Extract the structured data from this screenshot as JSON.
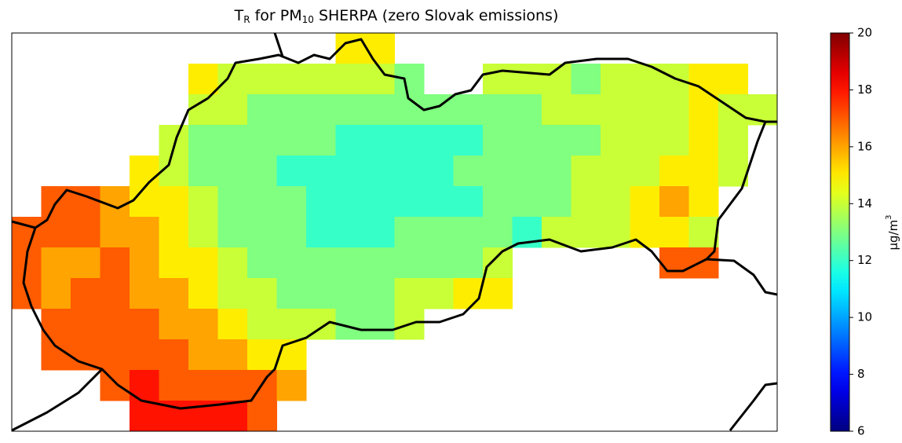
{
  "chart_data": {
    "type": "heatmap",
    "title": {
      "main": "T",
      "main_sub": "R",
      "mid": " for PM",
      "mid_sub": "10",
      "rest": " SHERPA (zero Slovak emissions)"
    },
    "values": [
      [
        null,
        null,
        null,
        null,
        null,
        null,
        null,
        null,
        null,
        null,
        null,
        15,
        15,
        null,
        null,
        null,
        null,
        null,
        null,
        null,
        null,
        null,
        null,
        null,
        null,
        null
      ],
      [
        null,
        null,
        null,
        null,
        null,
        null,
        15,
        14,
        14,
        14,
        14,
        14,
        14,
        13,
        null,
        null,
        14,
        14,
        14,
        13,
        14,
        14,
        14,
        15,
        15,
        null
      ],
      [
        null,
        null,
        null,
        null,
        null,
        null,
        14,
        14,
        13,
        13,
        13,
        13,
        13,
        13,
        13,
        13,
        13,
        13,
        14,
        14,
        14,
        14,
        14,
        15,
        14,
        14
      ],
      [
        null,
        null,
        null,
        null,
        null,
        14,
        13,
        13,
        13,
        13,
        13,
        12,
        12,
        12,
        12,
        12,
        13,
        13,
        13,
        13,
        14,
        14,
        14,
        15,
        14,
        null
      ],
      [
        null,
        null,
        null,
        null,
        15,
        14,
        13,
        13,
        13,
        12,
        12,
        12,
        12,
        12,
        12,
        13,
        13,
        13,
        13,
        14,
        14,
        14,
        15,
        15,
        14,
        null
      ],
      [
        null,
        17,
        17,
        16,
        15,
        15,
        14,
        13,
        13,
        13,
        12,
        12,
        12,
        12,
        12,
        12,
        13,
        13,
        13,
        14,
        14,
        15,
        16,
        15,
        null,
        null
      ],
      [
        17,
        17,
        17,
        16,
        16,
        15,
        14,
        13,
        13,
        13,
        12,
        12,
        12,
        13,
        13,
        13,
        13,
        12,
        14,
        14,
        14,
        15,
        15,
        14,
        null,
        null
      ],
      [
        17,
        16,
        16,
        17,
        16,
        15,
        15,
        14,
        13,
        13,
        13,
        13,
        13,
        13,
        13,
        13,
        14,
        null,
        null,
        null,
        null,
        null,
        17,
        17,
        null,
        null
      ],
      [
        17,
        16,
        17,
        17,
        16,
        16,
        15,
        14,
        14,
        13,
        13,
        13,
        13,
        14,
        14,
        15,
        15,
        null,
        null,
        null,
        null,
        null,
        null,
        null,
        null,
        null
      ],
      [
        null,
        17,
        17,
        17,
        17,
        16,
        16,
        15,
        14,
        14,
        14,
        13,
        13,
        14,
        null,
        null,
        null,
        null,
        null,
        null,
        null,
        null,
        null,
        null,
        null,
        null
      ],
      [
        null,
        17,
        17,
        17,
        17,
        17,
        16,
        16,
        15,
        15,
        null,
        null,
        null,
        null,
        null,
        null,
        null,
        null,
        null,
        null,
        null,
        null,
        null,
        null,
        null,
        null
      ],
      [
        null,
        null,
        null,
        17,
        18,
        17,
        17,
        17,
        17,
        16,
        null,
        null,
        null,
        null,
        null,
        null,
        null,
        null,
        null,
        null,
        null,
        null,
        null,
        null,
        null,
        null
      ],
      [
        null,
        null,
        null,
        null,
        18,
        18,
        18,
        18,
        17,
        null,
        null,
        null,
        null,
        null,
        null,
        null,
        null,
        null,
        null,
        null,
        null,
        null,
        null,
        null,
        null,
        null
      ]
    ],
    "colormap": "jet",
    "clim": [
      6,
      20
    ],
    "cticks": [
      6,
      8,
      10,
      12,
      14,
      16,
      18,
      20
    ],
    "clabel": {
      "base": "µg/m",
      "sup": "3"
    }
  }
}
